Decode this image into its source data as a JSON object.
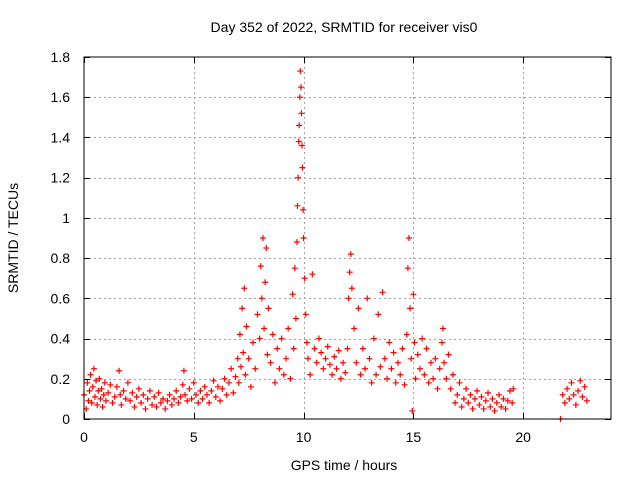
{
  "chart_data": {
    "type": "scatter",
    "title": "Day 352 of 2022, SRMTID for receiver vis0",
    "xlabel": "GPS time / hours",
    "ylabel": "SRMTID / TECUs",
    "xlim": [
      0,
      24
    ],
    "ylim": [
      0,
      1.8
    ],
    "xticks": [
      0,
      5,
      10,
      15,
      20
    ],
    "xtick_labels": [
      "0",
      "5",
      "10",
      "15",
      "20"
    ],
    "yticks": [
      0,
      0.2,
      0.4,
      0.6,
      0.8,
      1,
      1.2,
      1.4,
      1.6,
      1.8
    ],
    "ytick_labels": [
      "0",
      "0.2",
      "0.4",
      "0.6",
      "0.8",
      "1",
      "1.2",
      "1.4",
      "1.6",
      "1.8"
    ],
    "grid": true,
    "marker": "+",
    "colors": {
      "series": "#ff0000",
      "grid": "#a0a0a0",
      "axis": "#000000"
    },
    "series": [
      {
        "name": "SRMTID vis0",
        "points": [
          [
            0.0,
            0.12
          ],
          [
            0.1,
            0.05
          ],
          [
            0.15,
            0.18
          ],
          [
            0.2,
            0.09
          ],
          [
            0.25,
            0.14
          ],
          [
            0.3,
            0.22
          ],
          [
            0.35,
            0.08
          ],
          [
            0.4,
            0.16
          ],
          [
            0.45,
            0.25
          ],
          [
            0.5,
            0.11
          ],
          [
            0.55,
            0.19
          ],
          [
            0.6,
            0.07
          ],
          [
            0.65,
            0.14
          ],
          [
            0.7,
            0.2
          ],
          [
            0.75,
            0.1
          ],
          [
            0.8,
            0.15
          ],
          [
            0.85,
            0.06
          ],
          [
            0.9,
            0.12
          ],
          [
            0.95,
            0.18
          ],
          [
            1.0,
            0.09
          ],
          [
            1.1,
            0.13
          ],
          [
            1.2,
            0.17
          ],
          [
            1.3,
            0.08
          ],
          [
            1.4,
            0.11
          ],
          [
            1.5,
            0.16
          ],
          [
            1.6,
            0.24
          ],
          [
            1.65,
            0.12
          ],
          [
            1.7,
            0.07
          ],
          [
            1.8,
            0.14
          ],
          [
            1.9,
            0.1
          ],
          [
            2.0,
            0.18
          ],
          [
            2.1,
            0.09
          ],
          [
            2.2,
            0.13
          ],
          [
            2.3,
            0.06
          ],
          [
            2.4,
            0.11
          ],
          [
            2.5,
            0.15
          ],
          [
            2.6,
            0.08
          ],
          [
            2.7,
            0.12
          ],
          [
            2.8,
            0.05
          ],
          [
            2.9,
            0.1
          ],
          [
            3.0,
            0.14
          ],
          [
            3.1,
            0.07
          ],
          [
            3.2,
            0.11
          ],
          [
            3.3,
            0.06
          ],
          [
            3.4,
            0.13
          ],
          [
            3.5,
            0.08
          ],
          [
            3.6,
            0.1
          ],
          [
            3.7,
            0.05
          ],
          [
            3.8,
            0.09
          ],
          [
            3.9,
            0.12
          ],
          [
            4.0,
            0.07
          ],
          [
            4.1,
            0.1
          ],
          [
            4.2,
            0.14
          ],
          [
            4.3,
            0.08
          ],
          [
            4.4,
            0.11
          ],
          [
            4.5,
            0.17
          ],
          [
            4.55,
            0.24
          ],
          [
            4.6,
            0.12
          ],
          [
            4.7,
            0.09
          ],
          [
            4.8,
            0.15
          ],
          [
            4.9,
            0.1
          ],
          [
            5.0,
            0.18
          ],
          [
            5.1,
            0.12
          ],
          [
            5.2,
            0.08
          ],
          [
            5.3,
            0.14
          ],
          [
            5.4,
            0.1
          ],
          [
            5.5,
            0.16
          ],
          [
            5.6,
            0.12
          ],
          [
            5.7,
            0.08
          ],
          [
            5.8,
            0.14
          ],
          [
            5.9,
            0.19
          ],
          [
            6.0,
            0.11
          ],
          [
            6.1,
            0.16
          ],
          [
            6.2,
            0.09
          ],
          [
            6.3,
            0.15
          ],
          [
            6.4,
            0.2
          ],
          [
            6.5,
            0.12
          ],
          [
            6.6,
            0.18
          ],
          [
            6.7,
            0.25
          ],
          [
            6.8,
            0.13
          ],
          [
            6.9,
            0.21
          ],
          [
            7.0,
            0.3
          ],
          [
            7.05,
            0.18
          ],
          [
            7.1,
            0.42
          ],
          [
            7.15,
            0.26
          ],
          [
            7.2,
            0.55
          ],
          [
            7.25,
            0.33
          ],
          [
            7.3,
            0.65
          ],
          [
            7.35,
            0.22
          ],
          [
            7.4,
            0.46
          ],
          [
            7.5,
            0.3
          ],
          [
            7.6,
            0.16
          ],
          [
            7.7,
            0.38
          ],
          [
            7.8,
            0.25
          ],
          [
            7.9,
            0.52
          ],
          [
            8.0,
            0.4
          ],
          [
            8.05,
            0.76
          ],
          [
            8.1,
            0.6
          ],
          [
            8.15,
            0.9
          ],
          [
            8.2,
            0.45
          ],
          [
            8.25,
            0.68
          ],
          [
            8.3,
            0.85
          ],
          [
            8.35,
            0.32
          ],
          [
            8.4,
            0.55
          ],
          [
            8.5,
            0.28
          ],
          [
            8.6,
            0.42
          ],
          [
            8.7,
            0.18
          ],
          [
            8.8,
            0.35
          ],
          [
            8.9,
            0.25
          ],
          [
            9.0,
            0.4
          ],
          [
            9.1,
            0.22
          ],
          [
            9.2,
            0.3
          ],
          [
            9.3,
            0.45
          ],
          [
            9.4,
            0.2
          ],
          [
            9.5,
            0.62
          ],
          [
            9.55,
            0.35
          ],
          [
            9.6,
            0.75
          ],
          [
            9.65,
            0.5
          ],
          [
            9.7,
            0.88
          ],
          [
            9.72,
            1.06
          ],
          [
            9.75,
            1.2
          ],
          [
            9.78,
            1.38
          ],
          [
            9.8,
            1.46
          ],
          [
            9.83,
            1.6
          ],
          [
            9.85,
            1.73
          ],
          [
            9.88,
            1.65
          ],
          [
            9.9,
            1.52
          ],
          [
            9.93,
            1.36
          ],
          [
            9.95,
            1.25
          ],
          [
            9.98,
            1.04
          ],
          [
            10.0,
            0.9
          ],
          [
            10.05,
            0.7
          ],
          [
            10.1,
            0.52
          ],
          [
            10.15,
            0.38
          ],
          [
            10.2,
            0.3
          ],
          [
            10.3,
            0.22
          ],
          [
            10.4,
            0.72
          ],
          [
            10.5,
            0.35
          ],
          [
            10.6,
            0.28
          ],
          [
            10.7,
            0.4
          ],
          [
            10.8,
            0.33
          ],
          [
            10.9,
            0.25
          ],
          [
            11.0,
            0.3
          ],
          [
            11.1,
            0.36
          ],
          [
            11.2,
            0.27
          ],
          [
            11.3,
            0.22
          ],
          [
            11.4,
            0.31
          ],
          [
            11.5,
            0.25
          ],
          [
            11.6,
            0.34
          ],
          [
            11.7,
            0.2
          ],
          [
            11.8,
            0.28
          ],
          [
            11.9,
            0.23
          ],
          [
            12.0,
            0.35
          ],
          [
            12.05,
            0.6
          ],
          [
            12.1,
            0.73
          ],
          [
            12.15,
            0.82
          ],
          [
            12.2,
            0.65
          ],
          [
            12.3,
            0.45
          ],
          [
            12.4,
            0.28
          ],
          [
            12.5,
            0.55
          ],
          [
            12.6,
            0.22
          ],
          [
            12.7,
            0.35
          ],
          [
            12.8,
            0.25
          ],
          [
            12.9,
            0.6
          ],
          [
            13.0,
            0.3
          ],
          [
            13.1,
            0.18
          ],
          [
            13.2,
            0.4
          ],
          [
            13.3,
            0.22
          ],
          [
            13.4,
            0.52
          ],
          [
            13.5,
            0.26
          ],
          [
            13.6,
            0.63
          ],
          [
            13.7,
            0.3
          ],
          [
            13.8,
            0.2
          ],
          [
            13.9,
            0.38
          ],
          [
            14.0,
            0.25
          ],
          [
            14.1,
            0.33
          ],
          [
            14.2,
            0.18
          ],
          [
            14.3,
            0.28
          ],
          [
            14.4,
            0.22
          ],
          [
            14.5,
            0.35
          ],
          [
            14.6,
            0.17
          ],
          [
            14.7,
            0.42
          ],
          [
            14.75,
            0.75
          ],
          [
            14.8,
            0.9
          ],
          [
            14.85,
            0.55
          ],
          [
            14.9,
            0.3
          ],
          [
            14.95,
            0.04
          ],
          [
            15.0,
            0.62
          ],
          [
            15.05,
            0.38
          ],
          [
            15.1,
            0.2
          ],
          [
            15.2,
            0.32
          ],
          [
            15.3,
            0.25
          ],
          [
            15.4,
            0.4
          ],
          [
            15.5,
            0.22
          ],
          [
            15.6,
            0.35
          ],
          [
            15.7,
            0.18
          ],
          [
            15.8,
            0.28
          ],
          [
            15.9,
            0.2
          ],
          [
            16.0,
            0.3
          ],
          [
            16.1,
            0.15
          ],
          [
            16.2,
            0.25
          ],
          [
            16.3,
            0.38
          ],
          [
            16.35,
            0.45
          ],
          [
            16.4,
            0.28
          ],
          [
            16.5,
            0.2
          ],
          [
            16.6,
            0.32
          ],
          [
            16.7,
            0.15
          ],
          [
            16.8,
            0.22
          ],
          [
            16.9,
            0.08
          ],
          [
            17.0,
            0.12
          ],
          [
            17.1,
            0.18
          ],
          [
            17.2,
            0.06
          ],
          [
            17.3,
            0.1
          ],
          [
            17.4,
            0.15
          ],
          [
            17.5,
            0.08
          ],
          [
            17.6,
            0.12
          ],
          [
            17.7,
            0.05
          ],
          [
            17.8,
            0.1
          ],
          [
            17.9,
            0.14
          ],
          [
            18.0,
            0.07
          ],
          [
            18.1,
            0.11
          ],
          [
            18.2,
            0.05
          ],
          [
            18.3,
            0.09
          ],
          [
            18.4,
            0.13
          ],
          [
            18.5,
            0.06
          ],
          [
            18.6,
            0.1
          ],
          [
            18.7,
            0.04
          ],
          [
            18.8,
            0.08
          ],
          [
            18.9,
            0.12
          ],
          [
            19.0,
            0.06
          ],
          [
            19.1,
            0.1
          ],
          [
            19.2,
            0.05
          ],
          [
            19.3,
            0.09
          ],
          [
            19.4,
            0.14
          ],
          [
            19.5,
            0.08
          ],
          [
            19.55,
            0.15
          ],
          [
            21.7,
            0.0
          ],
          [
            21.8,
            0.12
          ],
          [
            21.9,
            0.08
          ],
          [
            22.0,
            0.15
          ],
          [
            22.1,
            0.1
          ],
          [
            22.2,
            0.18
          ],
          [
            22.3,
            0.12
          ],
          [
            22.4,
            0.07
          ],
          [
            22.5,
            0.14
          ],
          [
            22.6,
            0.19
          ],
          [
            22.7,
            0.11
          ],
          [
            22.8,
            0.16
          ],
          [
            22.9,
            0.09
          ]
        ]
      }
    ]
  }
}
